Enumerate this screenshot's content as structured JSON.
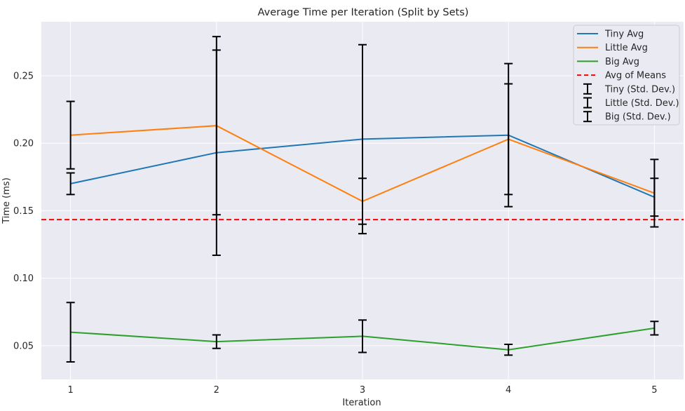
{
  "chart_data": {
    "type": "line",
    "title": "Average Time per Iteration (Split by Sets)",
    "xlabel": "Iteration",
    "ylabel": "Time (ms)",
    "x": [
      1,
      2,
      3,
      4,
      5
    ],
    "xlim": [
      0.8,
      5.2
    ],
    "ylim": [
      0.025,
      0.29
    ],
    "yticks": [
      0.05,
      0.1,
      0.15,
      0.2,
      0.25
    ],
    "ytick_labels": [
      "0.05",
      "0.10",
      "0.15",
      "0.20",
      "0.25"
    ],
    "xtick_labels": [
      "1",
      "2",
      "3",
      "4",
      "5"
    ],
    "grid": true,
    "legend_position": "top-right",
    "series": [
      {
        "name": "Tiny Avg",
        "errorbar_name": "Tiny (Std. Dev.)",
        "color": "#1f77b4",
        "values": [
          0.17,
          0.193,
          0.203,
          0.206,
          0.16
        ],
        "std": [
          0.008,
          0.076,
          0.07,
          0.053,
          0.014
        ]
      },
      {
        "name": "Little Avg",
        "errorbar_name": "Little (Std. Dev.)",
        "color": "#ff7f0e",
        "values": [
          0.206,
          0.213,
          0.157,
          0.203,
          0.163
        ],
        "std": [
          0.025,
          0.066,
          0.017,
          0.041,
          0.025
        ]
      },
      {
        "name": "Big Avg",
        "errorbar_name": "Big (Std. Dev.)",
        "color": "#2ca02c",
        "values": [
          0.06,
          0.053,
          0.057,
          0.047,
          0.063
        ],
        "std": [
          0.022,
          0.005,
          0.012,
          0.004,
          0.005
        ]
      }
    ],
    "reference_line": {
      "name": "Avg of Means",
      "value": 0.1434,
      "color": "#ff0000",
      "style": "dashed"
    },
    "errorbar_color": "#000000",
    "background_color": "#eaeaf2"
  }
}
